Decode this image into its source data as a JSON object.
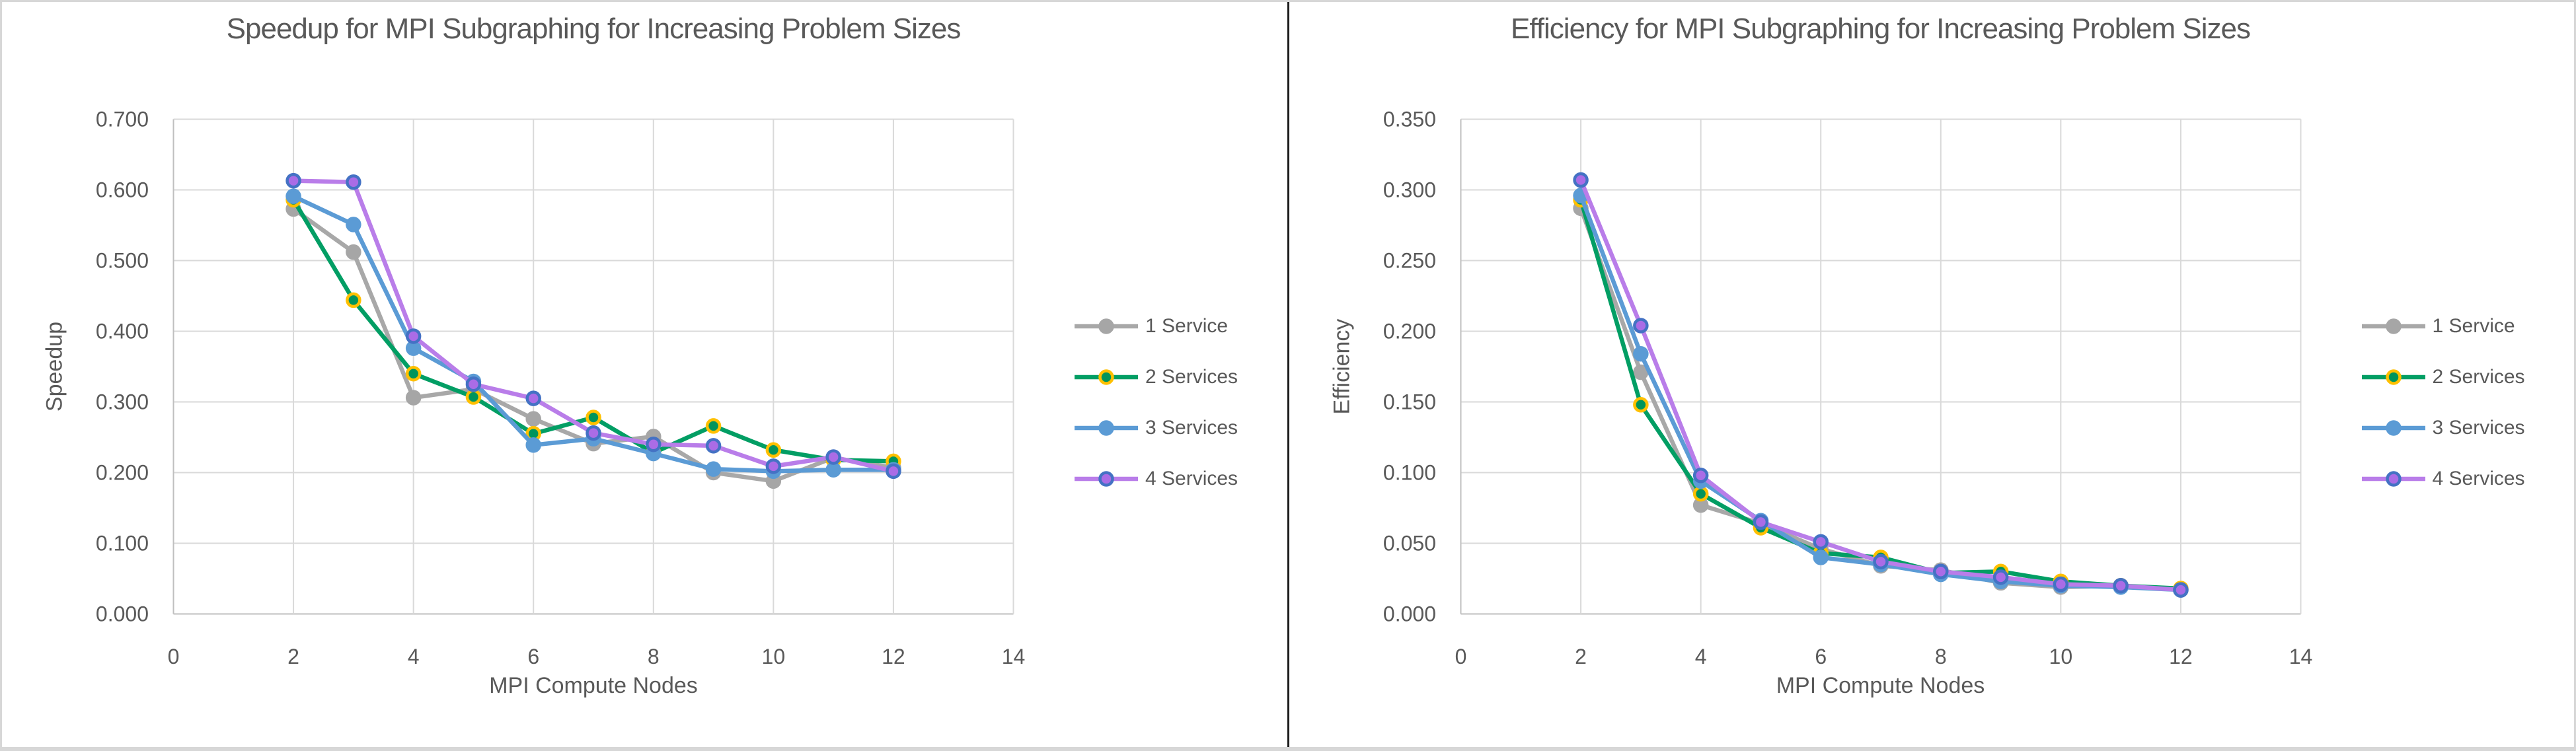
{
  "page": {
    "background": "#ffffff",
    "border_color": "#d7d7d7",
    "divider_color": "#1c1c1c"
  },
  "styles": {
    "text_color": "#595959",
    "grid_color": "#d9d9d9",
    "axis_color": "#bfbfbf",
    "series": [
      {
        "line": "#a8a8a8",
        "marker_fill": "#a6a6a6",
        "marker_ring": "#a6a6a6"
      },
      {
        "line": "#029e64",
        "marker_fill": "#00945c",
        "marker_ring": "#ffc000"
      },
      {
        "line": "#5b9bd5",
        "marker_fill": "#5b9bd5",
        "marker_ring": "#5b9bd5"
      },
      {
        "line": "#b97de9",
        "marker_fill": "#aa6ce6",
        "marker_ring": "#4472c4"
      }
    ]
  },
  "chart_data": [
    {
      "type": "line",
      "title": "Speedup for MPI Subgraphing for Increasing Problem Sizes",
      "xlabel": "MPI Compute Nodes",
      "ylabel": "Speedup",
      "xlim": [
        0,
        14
      ],
      "xstep": 2,
      "ylim": [
        0,
        0.7
      ],
      "ystep": 0.1,
      "tick_decimals": 3,
      "grid": true,
      "legend_position": "right",
      "x": [
        2,
        3,
        4,
        5,
        6,
        7,
        8,
        9,
        10,
        11,
        12
      ],
      "series": [
        {
          "name": "1 Service",
          "values": [
            0.573,
            0.512,
            0.306,
            0.318,
            0.276,
            0.241,
            0.251,
            0.2,
            0.188,
            0.221,
            0.207
          ]
        },
        {
          "name": "2 Services",
          "values": [
            0.586,
            0.444,
            0.34,
            0.307,
            0.255,
            0.278,
            0.228,
            0.266,
            0.232,
            0.218,
            0.216
          ]
        },
        {
          "name": "3 Services",
          "values": [
            0.591,
            0.551,
            0.376,
            0.329,
            0.239,
            0.248,
            0.227,
            0.205,
            0.202,
            0.204,
            0.204
          ]
        },
        {
          "name": "4 Services",
          "values": [
            0.613,
            0.611,
            0.393,
            0.325,
            0.305,
            0.256,
            0.24,
            0.238,
            0.209,
            0.222,
            0.202
          ]
        }
      ]
    },
    {
      "type": "line",
      "title": "Efficiency for MPI Subgraphing for Increasing Problem Sizes",
      "xlabel": "MPI Compute Nodes",
      "ylabel": "Efficiency",
      "xlim": [
        0,
        14
      ],
      "xstep": 2,
      "ylim": [
        0,
        0.35
      ],
      "ystep": 0.05,
      "tick_decimals": 3,
      "grid": true,
      "legend_position": "right",
      "x": [
        2,
        3,
        4,
        5,
        6,
        7,
        8,
        9,
        10,
        11,
        12
      ],
      "series": [
        {
          "name": "1 Service",
          "values": [
            0.287,
            0.171,
            0.077,
            0.064,
            0.046,
            0.034,
            0.031,
            0.022,
            0.019,
            0.02,
            0.017
          ]
        },
        {
          "name": "2 Services",
          "values": [
            0.293,
            0.148,
            0.085,
            0.061,
            0.043,
            0.04,
            0.029,
            0.03,
            0.023,
            0.02,
            0.018
          ]
        },
        {
          "name": "3 Services",
          "values": [
            0.296,
            0.184,
            0.094,
            0.066,
            0.04,
            0.035,
            0.028,
            0.023,
            0.02,
            0.019,
            0.017
          ]
        },
        {
          "name": "4 Services",
          "values": [
            0.307,
            0.204,
            0.098,
            0.065,
            0.051,
            0.037,
            0.03,
            0.026,
            0.021,
            0.02,
            0.017
          ]
        }
      ]
    }
  ]
}
